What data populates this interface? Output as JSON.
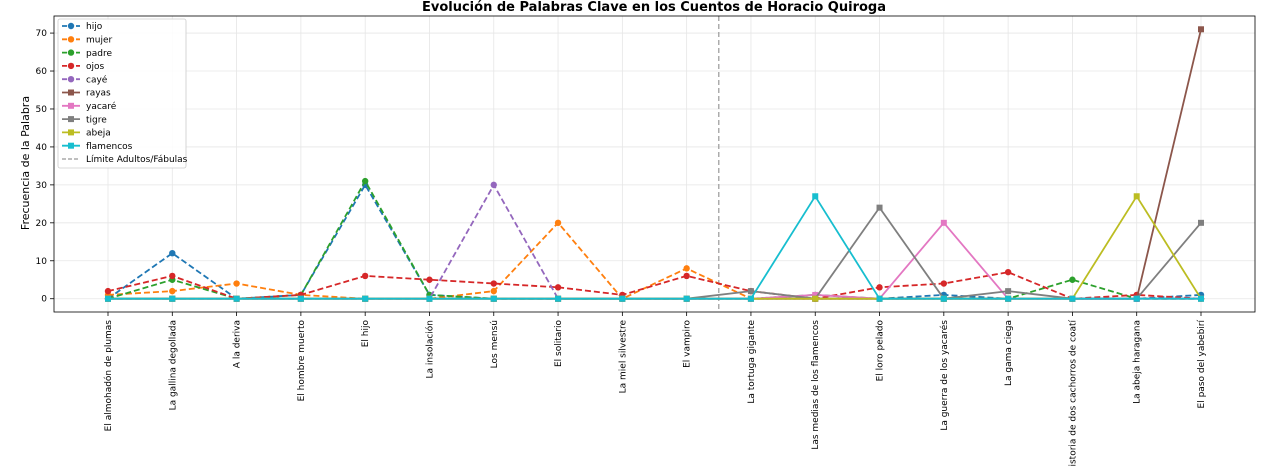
{
  "chart_data": {
    "type": "line",
    "title": "Evolución de Palabras Clave en los Cuentos de Horacio Quiroga",
    "xlabel": "",
    "ylabel": "Frecuencia de la Palabra",
    "ylim": [
      -3.5,
      74.5
    ],
    "yticks": [
      0,
      10,
      20,
      30,
      40,
      50,
      60,
      70
    ],
    "grid": true,
    "legend_position": "top-left",
    "categories": [
      "El almohadón de plumas",
      "La gallina degollada",
      "A la deriva",
      "El hombre muerto",
      "El hijo",
      "La insolación",
      "Los mensú",
      "El solitario",
      "La miel silvestre",
      "El vampiro",
      "La tortuga gigante",
      "Las medias de los flamencos",
      "El loro pelado",
      "La guerra de los yacarés",
      "La gama ciega",
      "Historia de dos cachorros de coatí",
      "La abeja haragana",
      "El paso del yabebirí"
    ],
    "boundary": {
      "label": "Límite Adultos/Fábulas",
      "after_index": 9,
      "color": "#999999"
    },
    "series": [
      {
        "name": "hijo",
        "color": "#1f77b4",
        "marker": "circle",
        "dash": "dashed",
        "values": [
          0,
          12,
          0,
          1,
          30,
          1,
          0,
          0,
          0,
          0,
          0,
          0,
          0,
          1,
          0,
          0,
          0,
          1
        ]
      },
      {
        "name": "mujer",
        "color": "#ff7f0e",
        "marker": "circle",
        "dash": "dashed",
        "values": [
          1,
          2,
          4,
          1,
          0,
          0,
          2,
          20,
          0,
          8,
          0,
          0,
          0,
          0,
          0,
          0,
          0,
          0
        ]
      },
      {
        "name": "padre",
        "color": "#2ca02c",
        "marker": "circle",
        "dash": "dashed",
        "values": [
          0,
          5,
          0,
          1,
          31,
          1,
          0,
          0,
          0,
          0,
          0,
          1,
          0,
          0,
          0,
          5,
          0,
          0
        ]
      },
      {
        "name": "ojos",
        "color": "#d62728",
        "marker": "circle",
        "dash": "dashed",
        "values": [
          2,
          6,
          0,
          1,
          6,
          5,
          4,
          3,
          1,
          6,
          2,
          0,
          3,
          4,
          7,
          0,
          1,
          0
        ]
      },
      {
        "name": "cayé",
        "color": "#9467bd",
        "marker": "circle",
        "dash": "dashed",
        "values": [
          0,
          0,
          0,
          0,
          0,
          0,
          30,
          0,
          0,
          0,
          0,
          0,
          0,
          0,
          0,
          0,
          0,
          0
        ]
      },
      {
        "name": "rayas",
        "color": "#8c564b",
        "marker": "square",
        "dash": "solid",
        "values": [
          0,
          0,
          0,
          0,
          0,
          0,
          0,
          0,
          0,
          0,
          0,
          0,
          0,
          0,
          0,
          0,
          0,
          71
        ]
      },
      {
        "name": "yacaré",
        "color": "#e377c2",
        "marker": "square",
        "dash": "solid",
        "values": [
          0,
          0,
          0,
          0,
          0,
          0,
          0,
          0,
          0,
          0,
          0,
          1,
          0,
          20,
          0,
          0,
          0,
          0
        ]
      },
      {
        "name": "tigre",
        "color": "#7f7f7f",
        "marker": "square",
        "dash": "solid",
        "values": [
          0,
          0,
          0,
          0,
          0,
          0,
          0,
          0,
          0,
          0,
          2,
          0,
          24,
          0,
          2,
          0,
          0,
          20
        ]
      },
      {
        "name": "abeja",
        "color": "#bcbd22",
        "marker": "square",
        "dash": "solid",
        "values": [
          0,
          0,
          0,
          0,
          0,
          0,
          0,
          0,
          0,
          0,
          0,
          0,
          0,
          0,
          0,
          0,
          27,
          0
        ]
      },
      {
        "name": "flamencos",
        "color": "#17becf",
        "marker": "square",
        "dash": "solid",
        "values": [
          0,
          0,
          0,
          0,
          0,
          0,
          0,
          0,
          0,
          0,
          0,
          27,
          0,
          0,
          0,
          0,
          0,
          0
        ]
      }
    ]
  }
}
